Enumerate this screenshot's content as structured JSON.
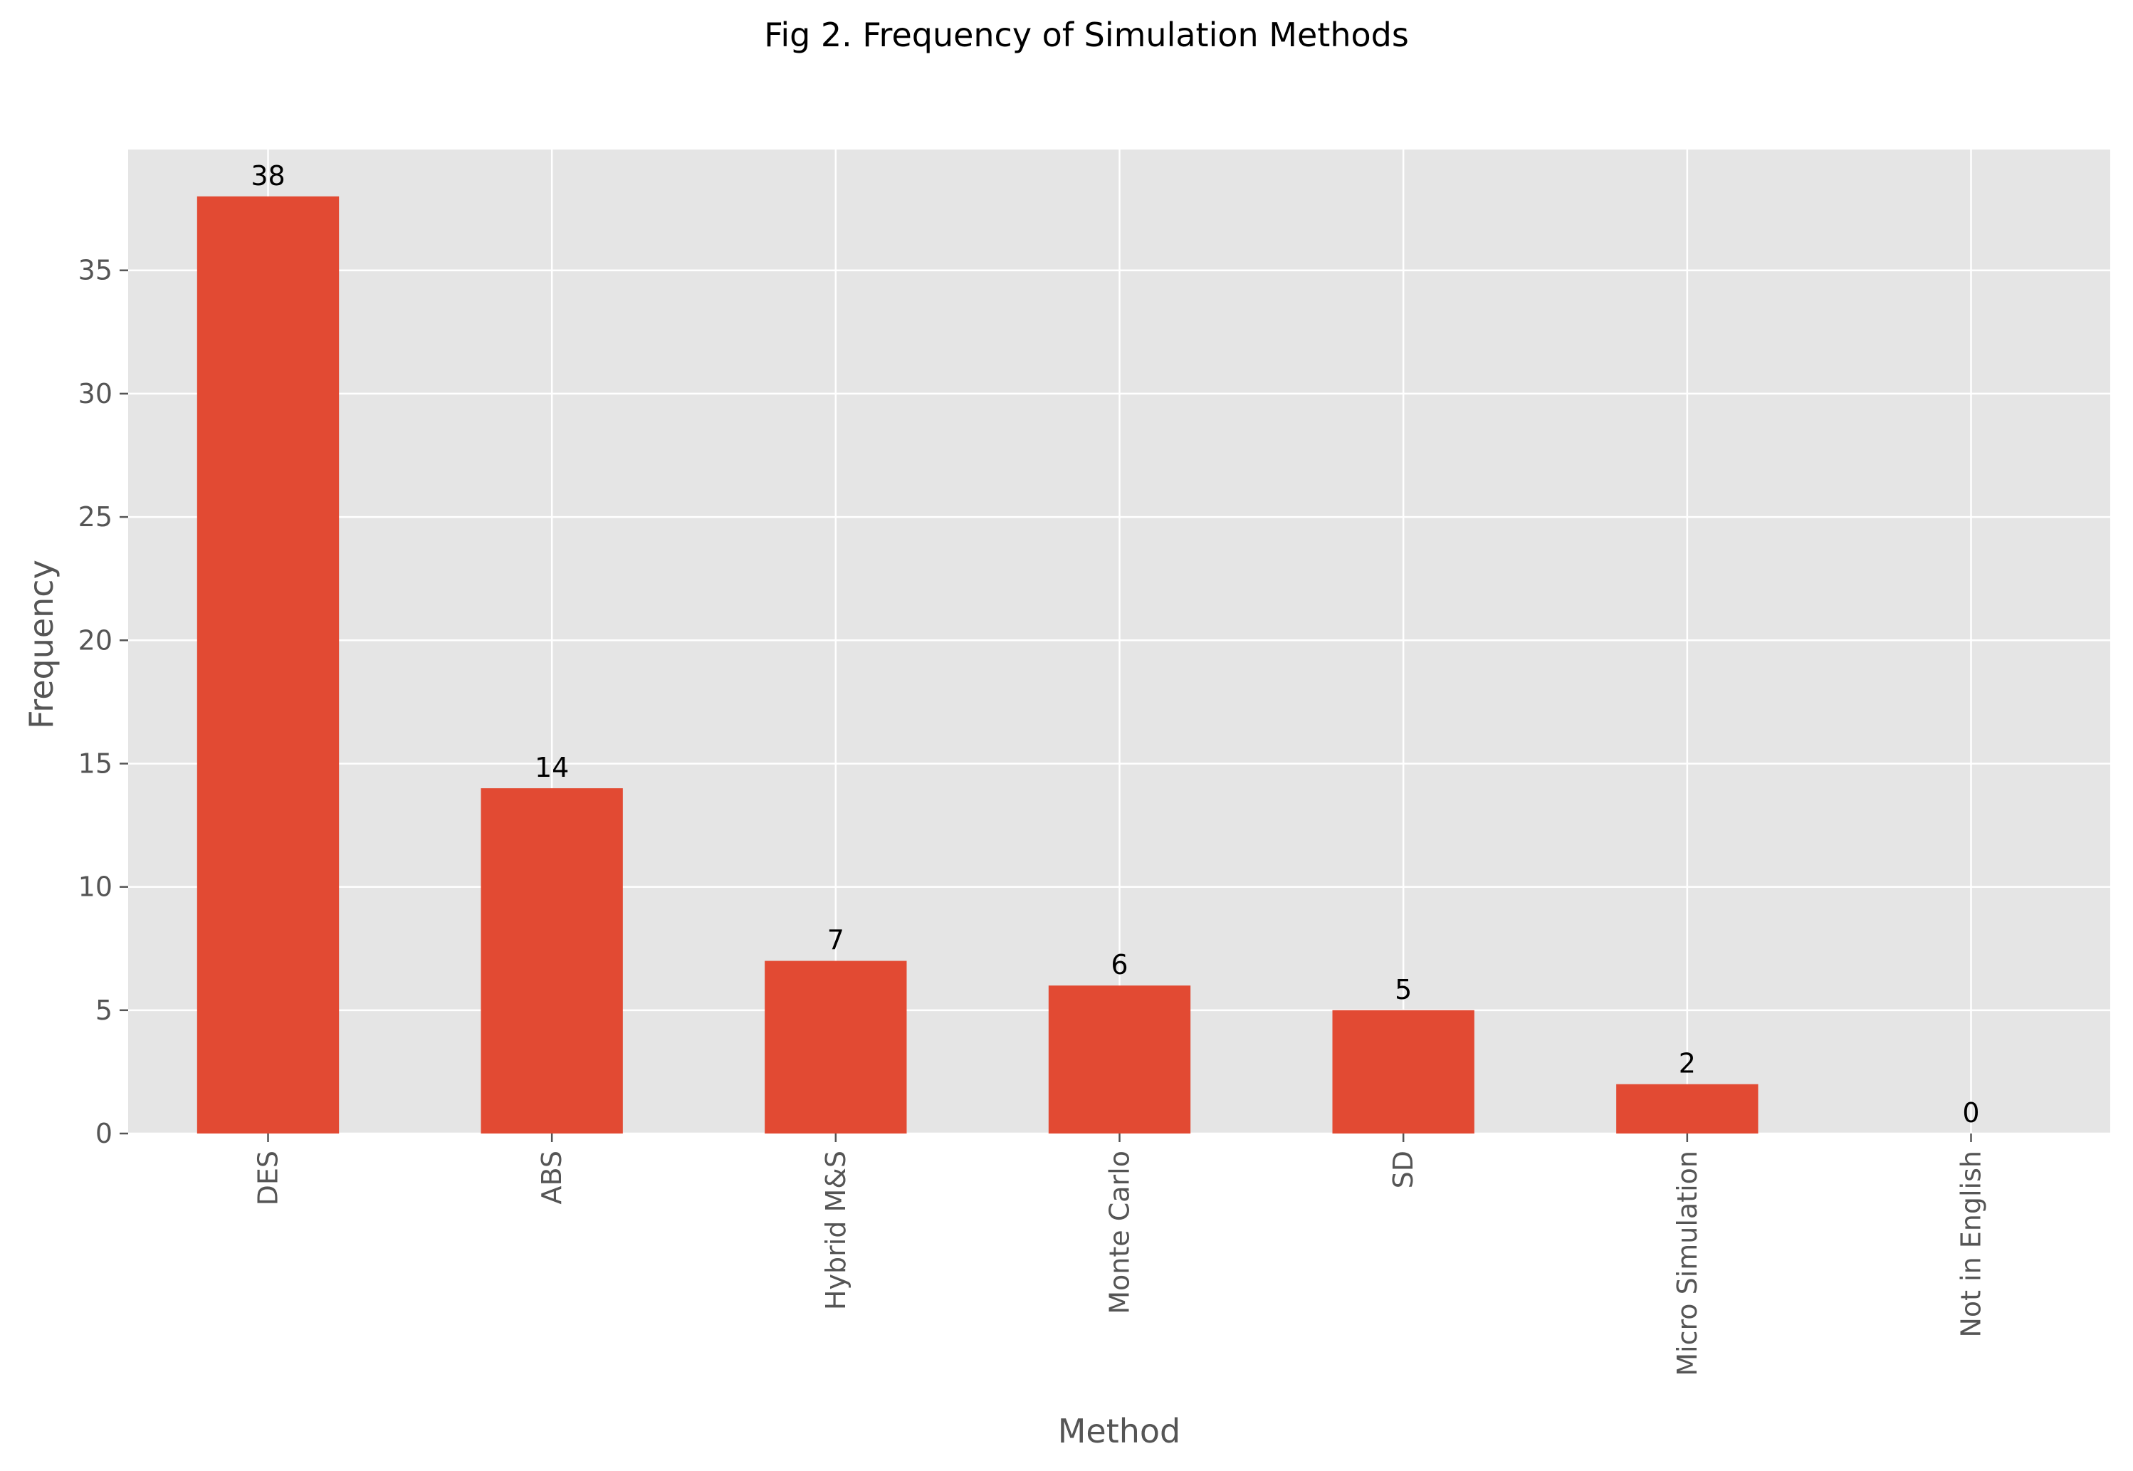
{
  "chart_data": {
    "type": "bar",
    "title": "Fig 2. Frequency of Simulation Methods",
    "xlabel": "Method",
    "ylabel": "Frequency",
    "categories": [
      "DES",
      "ABS",
      "Hybrid M&S",
      "Monte Carlo",
      "SD",
      "Micro Simulation",
      "Not in English"
    ],
    "values": [
      38,
      14,
      7,
      6,
      5,
      2,
      0
    ],
    "data_labels": [
      "38",
      "14",
      "7",
      "6",
      "5",
      "2",
      "0"
    ],
    "ylim": [
      0,
      39.9
    ],
    "y_ticks": [
      0,
      5,
      10,
      15,
      20,
      25,
      30,
      35
    ],
    "y_tick_labels": [
      "0",
      "5",
      "10",
      "15",
      "20",
      "25",
      "30",
      "35"
    ],
    "grid": true,
    "legend": false,
    "style": "ggplot",
    "colors": {
      "bar": "#E24A33",
      "plot_background": "#E5E5E5",
      "grid": "#FFFFFF",
      "tick_text": "#555555",
      "title_text": "#000000"
    }
  }
}
